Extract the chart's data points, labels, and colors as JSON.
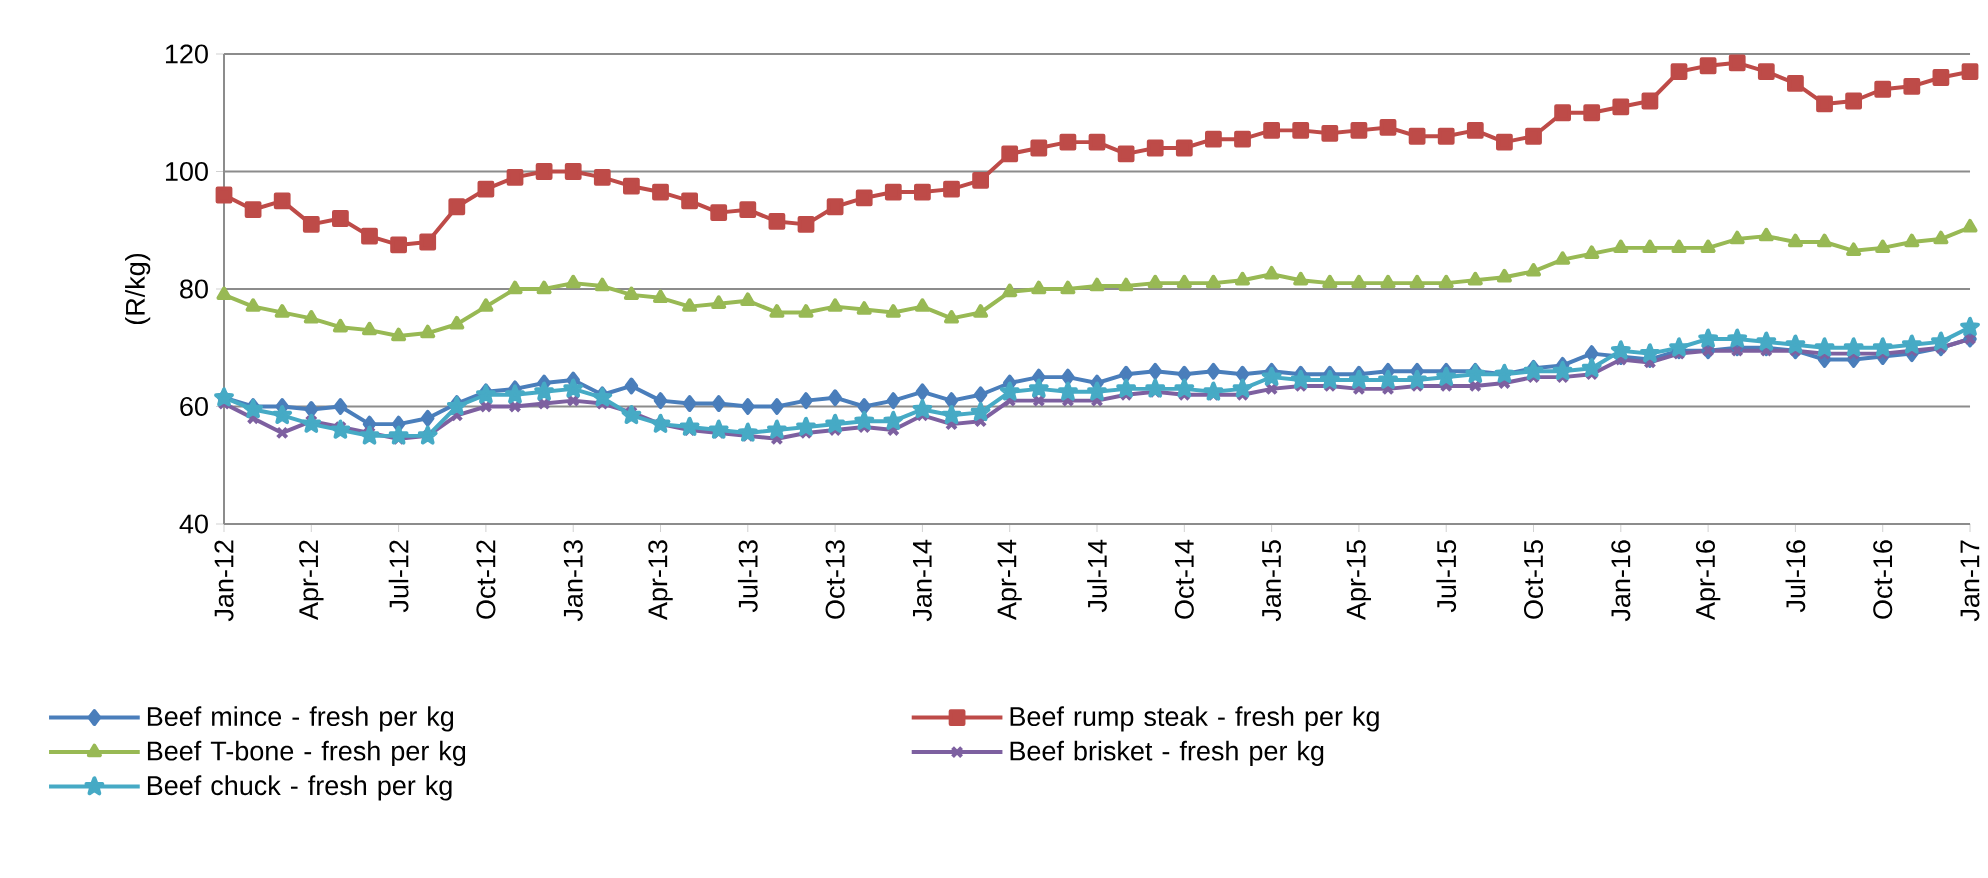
{
  "chart_data": {
    "type": "line",
    "ylabel": "(R/kg)",
    "categories": [
      "Jan-12",
      null,
      null,
      "Apr-12",
      null,
      null,
      "Jul-12",
      null,
      null,
      "Oct-12",
      null,
      null,
      "Jan-13",
      null,
      null,
      "Apr-13",
      null,
      null,
      "Jul-13",
      null,
      null,
      "Oct-13",
      null,
      null,
      "Jan-14",
      null,
      null,
      "Apr-14",
      null,
      null,
      "Jul-14",
      null,
      null,
      "Oct-14",
      null,
      null,
      "Jan-15",
      null,
      null,
      "Apr-15",
      null,
      null,
      "Jul-15",
      null,
      null,
      "Oct-15",
      null,
      null,
      "Jan-16",
      null,
      null,
      "Apr-16",
      null,
      null,
      "Jul-16",
      null,
      null,
      "Oct-16",
      null,
      null,
      "Jan-17"
    ],
    "ylim": [
      40,
      120
    ],
    "yticks": [
      40,
      60,
      80,
      100,
      120
    ],
    "grid": "y",
    "legend": "bottom",
    "line_style": "solid",
    "series": [
      {
        "name": "Beef mince - fresh per kg",
        "color": "#4a7ebb",
        "marker": "diamond",
        "values": [
          61.5,
          60,
          60,
          59.5,
          60,
          57,
          57,
          58,
          60.5,
          62.5,
          63,
          64,
          64.5,
          62,
          63.5,
          61,
          60.5,
          60.5,
          60,
          60,
          61,
          61.5,
          60,
          61,
          62.5,
          61,
          62,
          64,
          65,
          65,
          64,
          65.5,
          66,
          65.5,
          66,
          65.5,
          66,
          65.5,
          65.5,
          65.5,
          66,
          66,
          66,
          66,
          65.5,
          66.5,
          67,
          69,
          68.5,
          68,
          69.5,
          69.5,
          70,
          70,
          69.5,
          68,
          68,
          68.5,
          69,
          70,
          71.5
        ]
      },
      {
        "name": "Beef rump steak - fresh per kg",
        "color": "#be4b48",
        "marker": "square",
        "values": [
          96,
          93.5,
          95,
          91,
          92,
          89,
          87.5,
          88,
          94,
          97,
          99,
          100,
          100,
          99,
          97.5,
          96.5,
          95,
          93,
          93.5,
          91.5,
          91,
          94,
          95.5,
          96.5,
          96.5,
          97,
          98.5,
          103,
          104,
          105,
          105,
          103,
          104,
          104,
          105.5,
          105.5,
          107,
          107,
          106.5,
          107,
          107.5,
          106,
          106,
          107,
          105,
          106,
          110,
          110,
          111,
          112,
          117,
          118,
          118.5,
          117,
          115,
          111.5,
          112,
          114,
          114.5,
          116,
          117
        ]
      },
      {
        "name": "Beef T-bone - fresh per kg",
        "color": "#98b954",
        "marker": "triangle",
        "values": [
          79,
          77,
          76,
          75,
          73.5,
          73,
          72,
          72.5,
          74,
          77,
          80,
          80,
          81,
          80.5,
          79,
          78.5,
          77,
          77.5,
          78,
          76,
          76,
          77,
          76.5,
          76,
          77,
          75,
          76,
          79.5,
          80,
          80,
          80.5,
          80.5,
          81,
          81,
          81,
          81.5,
          82.5,
          81.5,
          81,
          81,
          81,
          81,
          81,
          81.5,
          82,
          83,
          85,
          86,
          87,
          87,
          87,
          87,
          88.5,
          89,
          88,
          88,
          86.5,
          87,
          88,
          88.5,
          90.5
        ]
      },
      {
        "name": "Beef brisket - fresh per kg",
        "color": "#7d60a0",
        "marker": "cross",
        "values": [
          60.5,
          58,
          55.5,
          57.5,
          56.5,
          55.5,
          54.5,
          55,
          58.5,
          60,
          60,
          60.5,
          61,
          60.5,
          59,
          57,
          56,
          55.5,
          55,
          54.5,
          55.5,
          56,
          56.5,
          56,
          58.5,
          57,
          57.5,
          61,
          61,
          61,
          61,
          62,
          62.5,
          62,
          62,
          62,
          63,
          63.5,
          63.5,
          63,
          63,
          63.5,
          63.5,
          63.5,
          64,
          65,
          65,
          65.5,
          68,
          67.5,
          69,
          69.5,
          69.5,
          69.5,
          69.5,
          69,
          69,
          69,
          69.5,
          70,
          71.5
        ]
      },
      {
        "name": "Beef chuck - fresh per kg",
        "color": "#46aac5",
        "marker": "star",
        "values": [
          61.5,
          59.5,
          58.5,
          57,
          56,
          55,
          55,
          55,
          60,
          62,
          62,
          62.5,
          63,
          61.5,
          58.5,
          57,
          56.5,
          56,
          55.5,
          56,
          56.5,
          57,
          57.5,
          57.5,
          59.5,
          58.5,
          59,
          62.5,
          63,
          62.5,
          62.5,
          63,
          63,
          63,
          62.5,
          63,
          65,
          64.5,
          64.5,
          64.5,
          64.5,
          64.5,
          65,
          65.5,
          65.5,
          66,
          66,
          66.5,
          69.5,
          69,
          70,
          71.5,
          71.5,
          71,
          70.5,
          70,
          70,
          70,
          70.5,
          71,
          73.5
        ]
      }
    ]
  }
}
